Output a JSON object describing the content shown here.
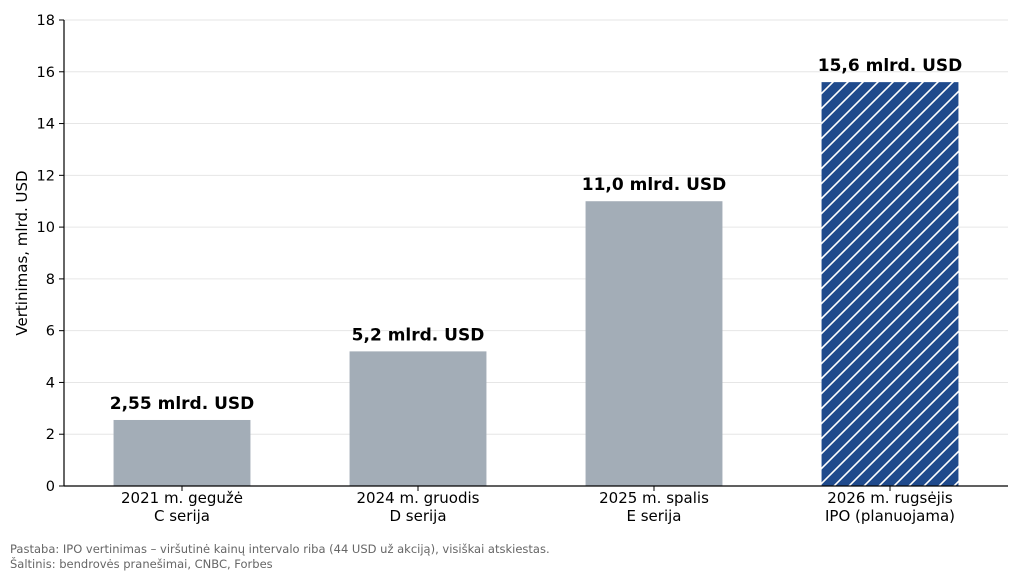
{
  "chart_data": {
    "type": "bar",
    "categories": [
      [
        "2021 m. gegužė",
        "C serija"
      ],
      [
        "2024 m. gruodis",
        "D serija"
      ],
      [
        "2025 m. spalis",
        "E serija"
      ],
      [
        "2026 m. rugsėjis",
        "IPO (planuojama)"
      ]
    ],
    "values": [
      2.55,
      5.2,
      11.0,
      15.6
    ],
    "data_labels": [
      "2,55 mlrd. USD",
      "5,2 mlrd. USD",
      "11,0 mlrd. USD",
      "15,6 mlrd. USD"
    ],
    "hatched": [
      false,
      false,
      false,
      true
    ],
    "title": "",
    "xlabel": "",
    "ylabel": "Vertinimas, mlrd. USD",
    "ylim": [
      0,
      18
    ],
    "yticks": [
      0,
      2,
      4,
      6,
      8,
      10,
      12,
      14,
      16,
      18
    ],
    "grid": true,
    "colors": {
      "bar": "#a3adb7",
      "highlight": "#1f4a8c",
      "hatch": "#ffffff",
      "grid": "#e6e6e6"
    }
  },
  "footnotes": {
    "note": "Pastaba: IPO vertinimas – viršutinė kainų intervalo riba (44 USD už akciją), visiškai atskiestas.",
    "source": "Šaltinis: bendrovės pranešimai, CNBC, Forbes"
  }
}
